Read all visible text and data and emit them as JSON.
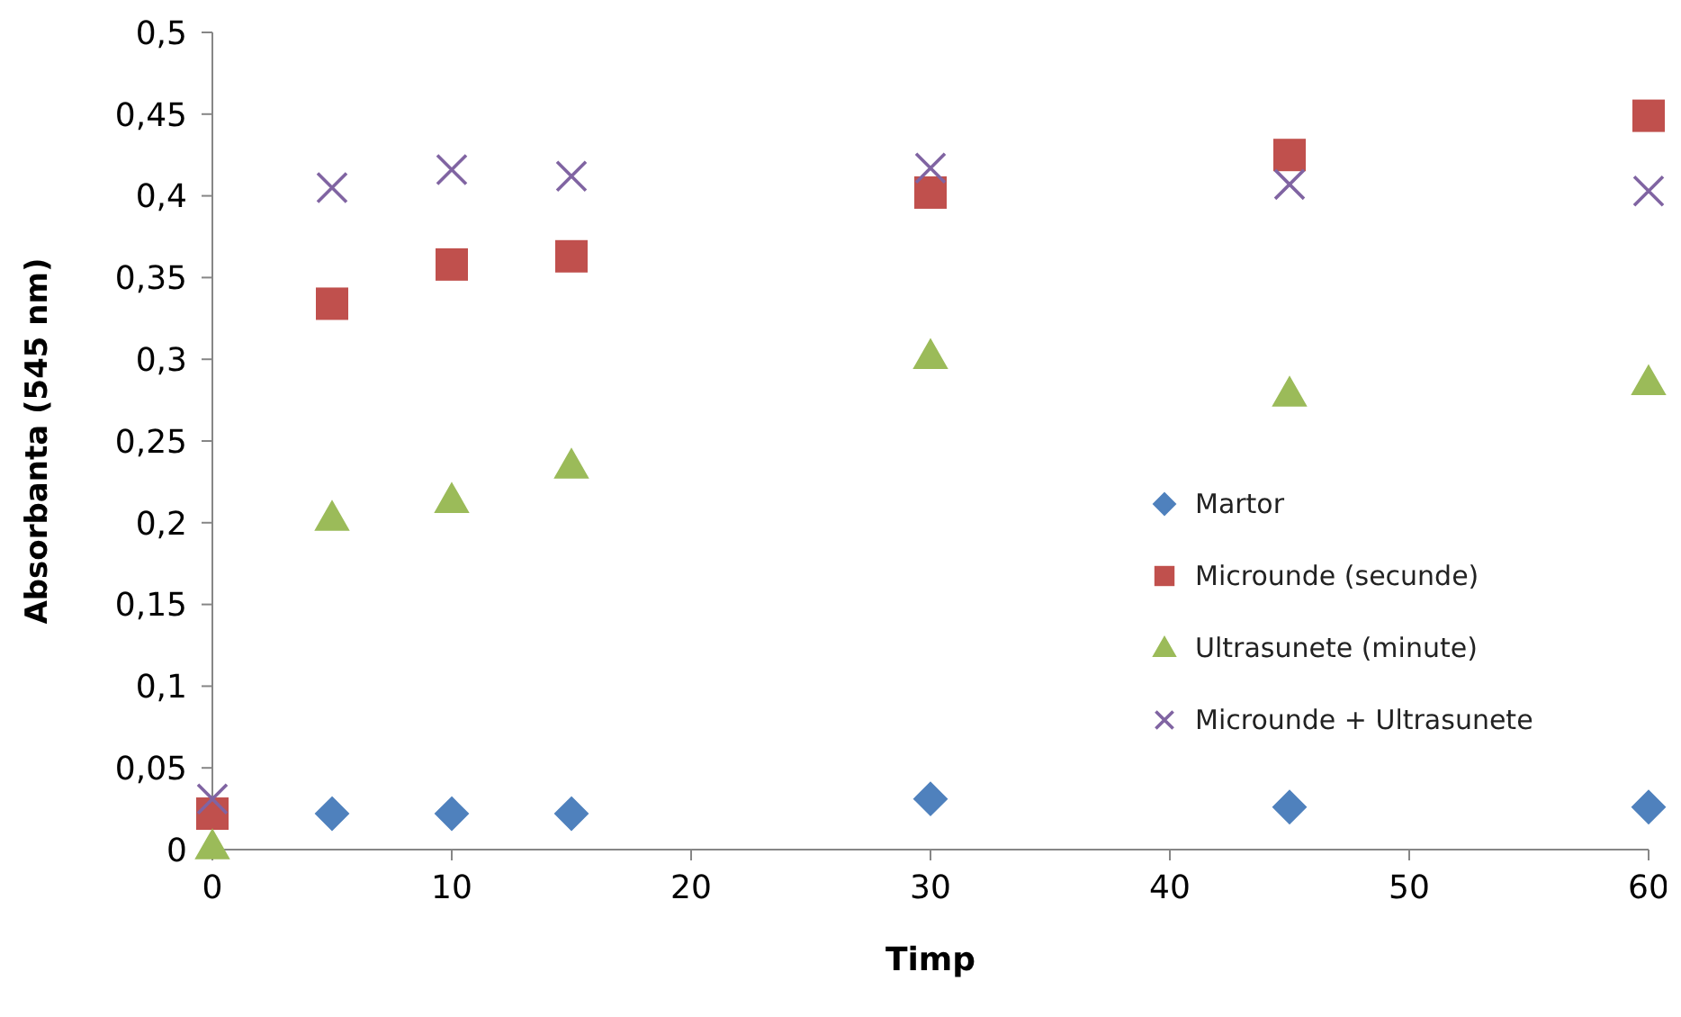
{
  "chart_data": {
    "type": "scatter",
    "xlabel": "Timp",
    "ylabel": "Absorbanta (545 nm)",
    "x": [
      0,
      5,
      10,
      15,
      30,
      45,
      60
    ],
    "series": [
      {
        "name": "Martor",
        "color": "#4f81bd",
        "marker": "diamond",
        "values": [
          null,
          0.022,
          0.022,
          0.022,
          0.031,
          0.026,
          0.026
        ]
      },
      {
        "name": "Microunde (secunde)",
        "color": "#c0504d",
        "marker": "square",
        "values": [
          0.022,
          0.334,
          0.358,
          0.363,
          0.402,
          0.425,
          0.449
        ]
      },
      {
        "name": "Ultrasunete (minute)",
        "color": "#9bbb59",
        "marker": "triangle",
        "values": [
          0.002,
          0.203,
          0.214,
          0.235,
          0.302,
          0.279,
          0.286
        ]
      },
      {
        "name": "Microunde + Ultrasunete",
        "color": "#8064a2",
        "marker": "cross",
        "values": [
          0.031,
          0.405,
          0.416,
          0.412,
          0.417,
          0.407,
          0.403
        ]
      }
    ],
    "xlim": [
      0,
      60
    ],
    "xticks": [
      0,
      10,
      20,
      30,
      40,
      50,
      60
    ],
    "ylim": [
      0,
      0.5
    ],
    "yticks": [
      0,
      {
        "value": 0.05,
        "label": "0,05"
      },
      {
        "value": 0.1,
        "label": "0,1"
      },
      {
        "value": 0.15,
        "label": "0,15"
      },
      {
        "value": 0.2,
        "label": "0,2"
      },
      {
        "value": 0.25,
        "label": "0,25"
      },
      {
        "value": 0.3,
        "label": "0,3"
      },
      {
        "value": 0.35,
        "label": "0,35"
      },
      {
        "value": 0.4,
        "label": "0,4"
      },
      {
        "value": 0.45,
        "label": "0,45"
      },
      {
        "value": 0.5,
        "label": "0,5"
      }
    ],
    "legend": "right",
    "grid": false
  }
}
